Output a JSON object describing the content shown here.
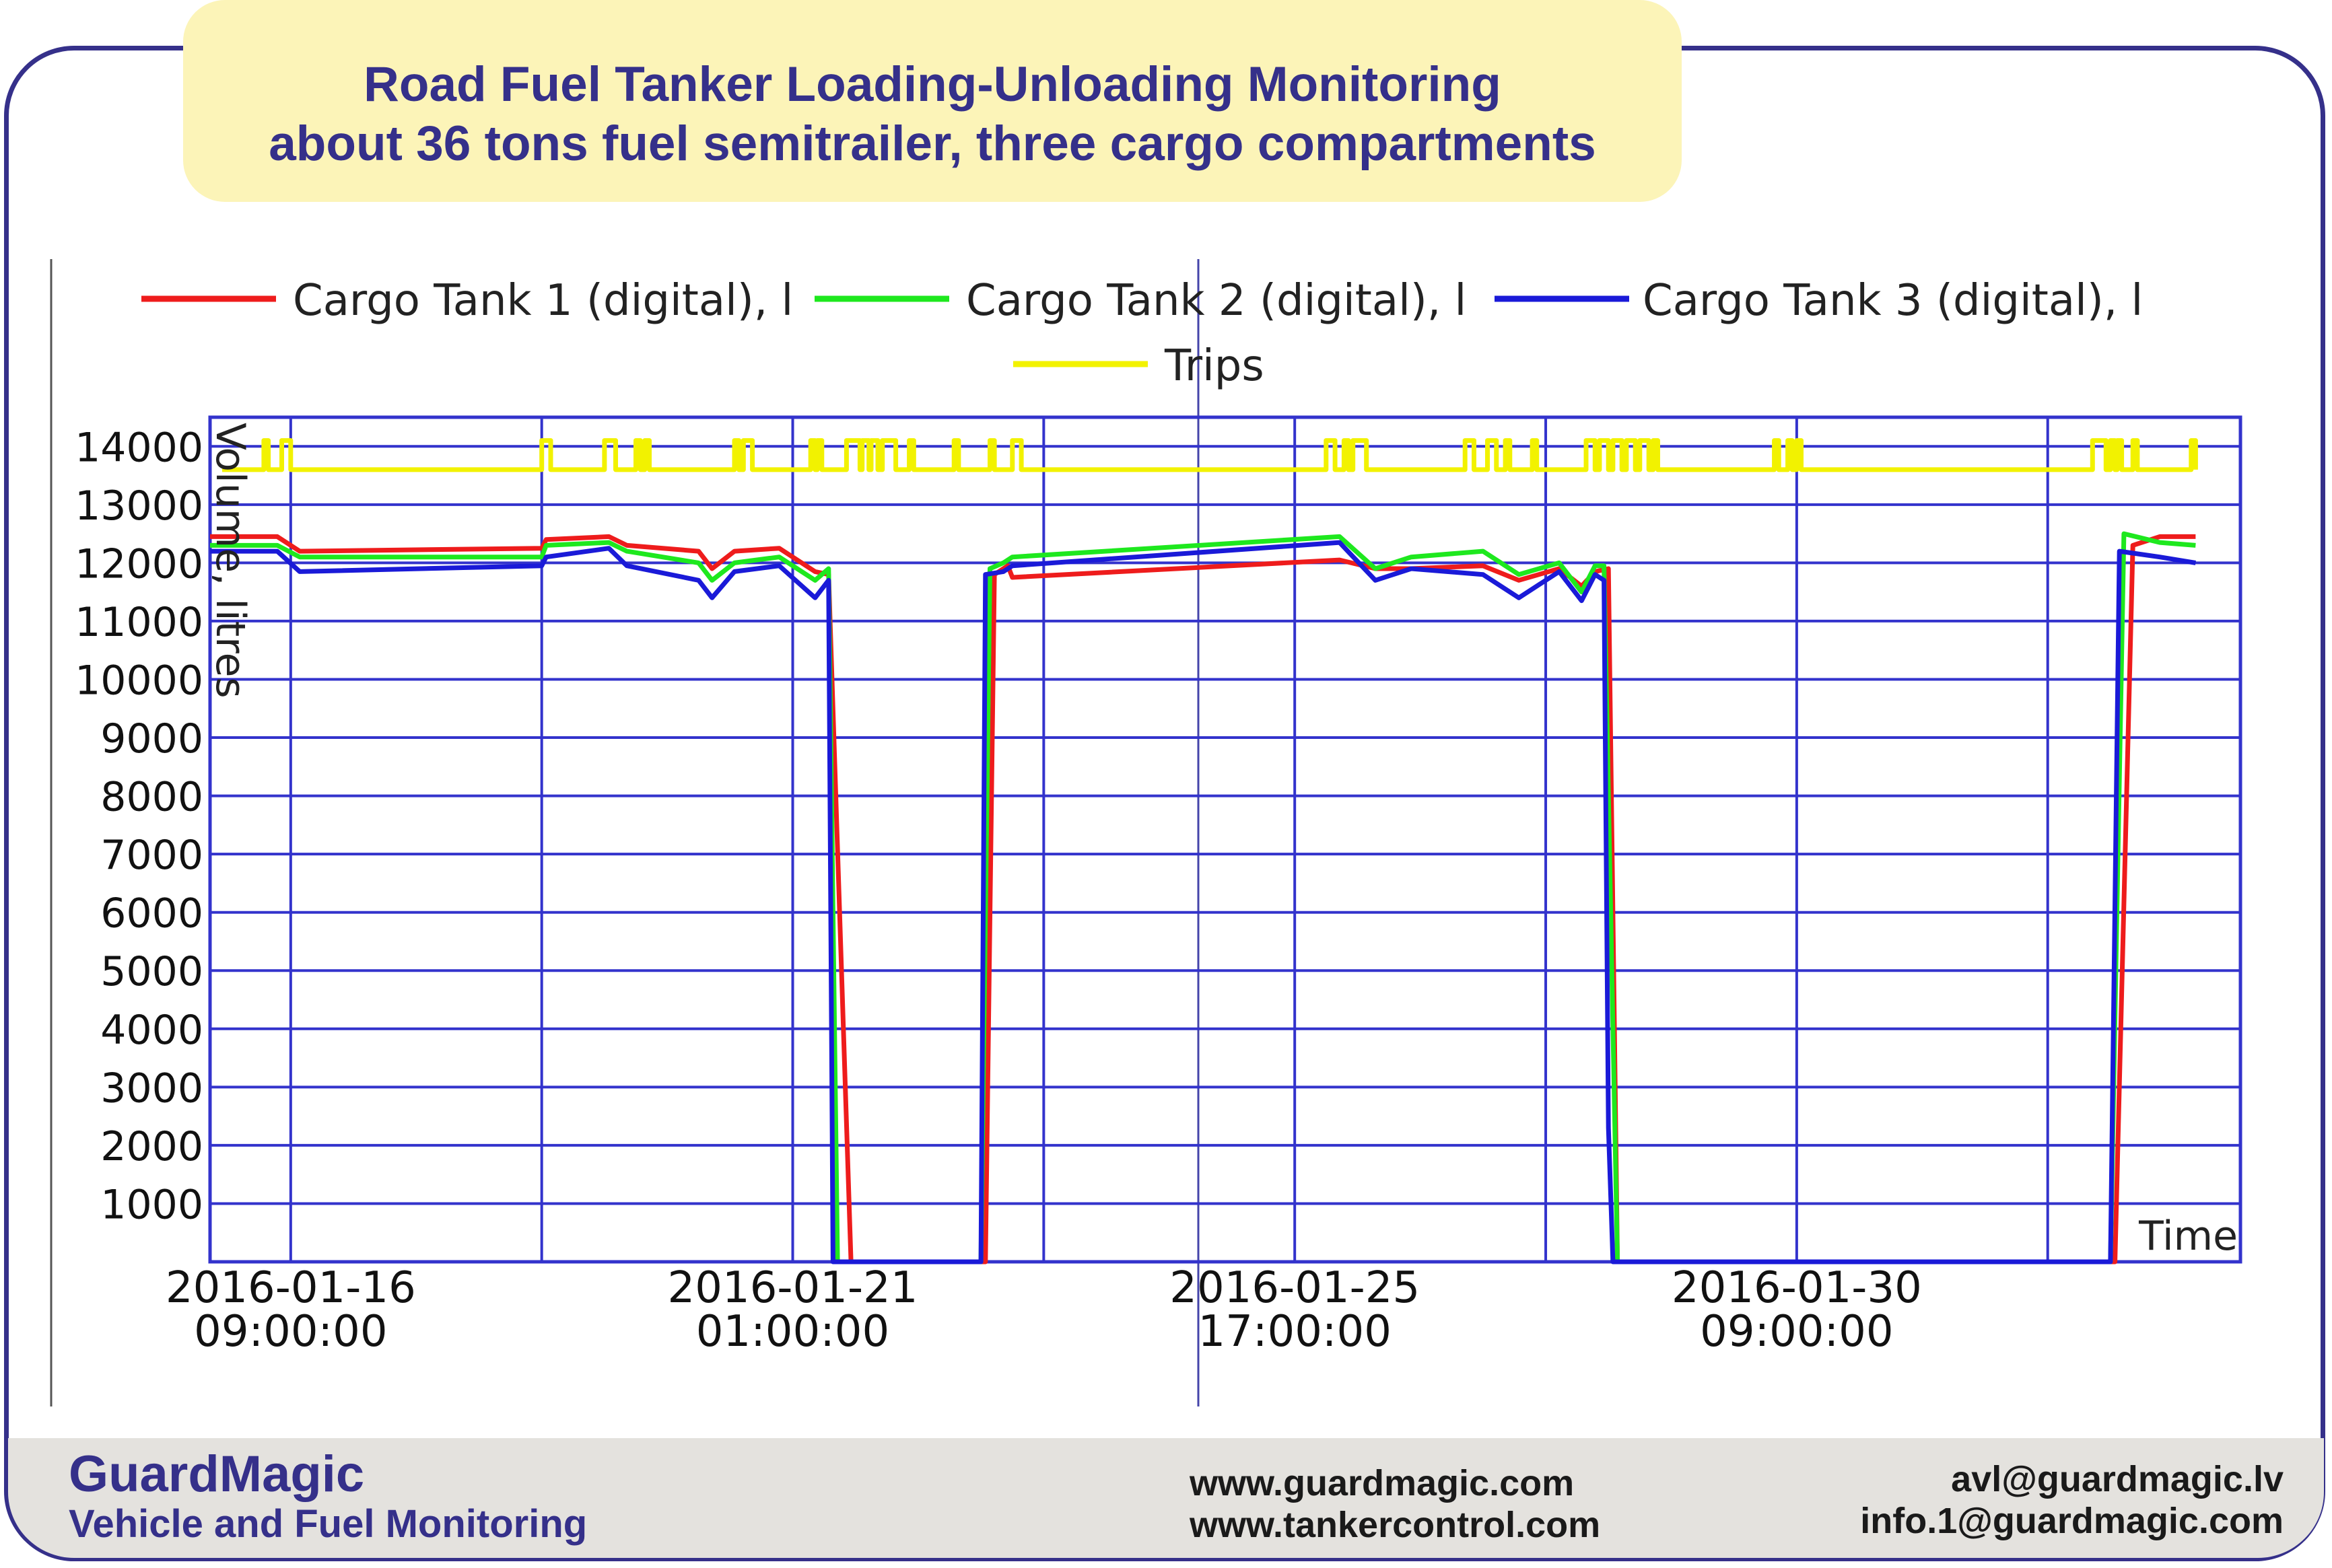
{
  "title": {
    "line1": "Road Fuel Tanker Loading-Unloading Monitoring",
    "line2": "about 36 tons fuel semitrailer, three cargo compartments"
  },
  "footer": {
    "brand": "GuardMagic",
    "tagline": "Vehicle and Fuel Monitoring",
    "websites": [
      "www.guardmagic.com",
      "www.tankercontrol.com"
    ],
    "emails": [
      "avl@guardmagic.lv",
      "info.1@guardmagic.com"
    ]
  },
  "colors": {
    "frame": "#35308a",
    "title_bg": "#fcf4b8",
    "grid": "#3333cc",
    "tank1": "#ee1c1c",
    "tank2": "#1ee81e",
    "tank3": "#1a1ad8",
    "trips": "#f2f200"
  },
  "chart_data": {
    "type": "line",
    "title": "",
    "xlabel": "Time",
    "ylabel": "Volume, litres",
    "ylim": [
      0,
      14500
    ],
    "xlim": [
      "2016-01-15 15:00",
      "2016-02-03 12:00"
    ],
    "y_ticks": [
      1000,
      2000,
      3000,
      4000,
      5000,
      6000,
      7000,
      8000,
      9000,
      10000,
      11000,
      12000,
      13000,
      14000
    ],
    "x_ticks": [
      {
        "at": "2016-01-16 09:00",
        "line1": "2016-01-16",
        "line2": "09:00:00"
      },
      {
        "at": "2016-01-21 01:00",
        "line1": "2016-01-21",
        "line2": "01:00:00"
      },
      {
        "at": "2016-01-25 17:00",
        "line1": "2016-01-25",
        "line2": "17:00:00"
      },
      {
        "at": "2016-01-30 09:00",
        "line1": "2016-01-30",
        "line2": "09:00:00"
      }
    ],
    "x_gridlines": [
      "2016-01-16 09:00",
      "2016-01-18 17:00",
      "2016-01-21 01:00",
      "2016-01-23 09:00",
      "2016-01-25 17:00",
      "2016-01-28 01:00",
      "2016-01-30 09:00",
      "2016-02-01 17:00"
    ],
    "grid": true,
    "legend": "top",
    "series": [
      {
        "name": "Cargo Tank 1 (digital), l",
        "color": "#ee1c1c",
        "points": [
          [
            "2016-01-15 15:00",
            12450
          ],
          [
            "2016-01-16 06:00",
            12450
          ],
          [
            "2016-01-16 11:00",
            12200
          ],
          [
            "2016-01-18 17:00",
            12250
          ],
          [
            "2016-01-18 18:00",
            12400
          ],
          [
            "2016-01-19 08:00",
            12450
          ],
          [
            "2016-01-19 12:00",
            12300
          ],
          [
            "2016-01-20 04:00",
            12200
          ],
          [
            "2016-01-20 07:00",
            11900
          ],
          [
            "2016-01-20 12:00",
            12200
          ],
          [
            "2016-01-20 22:00",
            12250
          ],
          [
            "2016-01-21 06:00",
            11850
          ],
          [
            "2016-01-21 09:00",
            11800
          ],
          [
            "2016-01-21 14:00",
            0
          ],
          [
            "2016-01-22 20:00",
            0
          ],
          [
            "2016-01-22 22:00",
            11800
          ],
          [
            "2016-01-23 01:00",
            11950
          ],
          [
            "2016-01-23 02:00",
            11750
          ],
          [
            "2016-01-26 03:00",
            12050
          ],
          [
            "2016-01-26 11:00",
            11900
          ],
          [
            "2016-01-26 19:00",
            11900
          ],
          [
            "2016-01-27 11:00",
            11950
          ],
          [
            "2016-01-27 19:00",
            11700
          ],
          [
            "2016-01-28 04:00",
            11900
          ],
          [
            "2016-01-28 09:00",
            11600
          ],
          [
            "2016-01-28 12:00",
            11850
          ],
          [
            "2016-01-28 15:00",
            11900
          ],
          [
            "2016-01-28 17:00",
            0
          ],
          [
            "2016-02-02 08:00",
            0
          ],
          [
            "2016-02-02 12:00",
            12300
          ],
          [
            "2016-02-02 18:00",
            12450
          ],
          [
            "2016-02-03 02:00",
            12450
          ]
        ]
      },
      {
        "name": "Cargo Tank 2 (digital), l",
        "color": "#1ee81e",
        "points": [
          [
            "2016-01-15 15:00",
            12300
          ],
          [
            "2016-01-16 06:00",
            12300
          ],
          [
            "2016-01-16 11:00",
            12100
          ],
          [
            "2016-01-18 17:00",
            12100
          ],
          [
            "2016-01-18 18:00",
            12300
          ],
          [
            "2016-01-19 08:00",
            12350
          ],
          [
            "2016-01-19 12:00",
            12200
          ],
          [
            "2016-01-20 04:00",
            12000
          ],
          [
            "2016-01-20 07:00",
            11700
          ],
          [
            "2016-01-20 12:00",
            12000
          ],
          [
            "2016-01-20 22:00",
            12100
          ],
          [
            "2016-01-21 06:00",
            11700
          ],
          [
            "2016-01-21 09:00",
            11900
          ],
          [
            "2016-01-21 11:00",
            0
          ],
          [
            "2016-01-22 19:00",
            0
          ],
          [
            "2016-01-22 21:00",
            11900
          ],
          [
            "2016-01-23 00:00",
            12000
          ],
          [
            "2016-01-23 02:00",
            12100
          ],
          [
            "2016-01-26 03:00",
            12450
          ],
          [
            "2016-01-26 11:00",
            11900
          ],
          [
            "2016-01-26 19:00",
            12100
          ],
          [
            "2016-01-27 11:00",
            12200
          ],
          [
            "2016-01-27 19:00",
            11800
          ],
          [
            "2016-01-28 04:00",
            12000
          ],
          [
            "2016-01-28 09:00",
            11500
          ],
          [
            "2016-01-28 12:00",
            11950
          ],
          [
            "2016-01-28 14:00",
            11950
          ],
          [
            "2016-01-28 17:00",
            0
          ],
          [
            "2016-02-02 07:00",
            0
          ],
          [
            "2016-02-02 10:00",
            12500
          ],
          [
            "2016-02-02 18:00",
            12350
          ],
          [
            "2016-02-03 02:00",
            12300
          ]
        ]
      },
      {
        "name": "Cargo Tank 3 (digital), l",
        "color": "#1a1ad8",
        "points": [
          [
            "2016-01-15 15:00",
            12200
          ],
          [
            "2016-01-16 06:00",
            12200
          ],
          [
            "2016-01-16 11:00",
            11850
          ],
          [
            "2016-01-18 17:00",
            11950
          ],
          [
            "2016-01-18 18:00",
            12100
          ],
          [
            "2016-01-19 08:00",
            12250
          ],
          [
            "2016-01-19 12:00",
            11950
          ],
          [
            "2016-01-20 04:00",
            11700
          ],
          [
            "2016-01-20 07:00",
            11400
          ],
          [
            "2016-01-20 12:00",
            11850
          ],
          [
            "2016-01-20 22:00",
            11950
          ],
          [
            "2016-01-21 06:00",
            11400
          ],
          [
            "2016-01-21 09:00",
            11700
          ],
          [
            "2016-01-21 10:00",
            0
          ],
          [
            "2016-01-22 19:00",
            0
          ],
          [
            "2016-01-22 20:00",
            11800
          ],
          [
            "2016-01-23 00:00",
            11850
          ],
          [
            "2016-01-23 02:00",
            11950
          ],
          [
            "2016-01-26 03:00",
            12350
          ],
          [
            "2016-01-26 11:00",
            11700
          ],
          [
            "2016-01-26 19:00",
            11900
          ],
          [
            "2016-01-27 11:00",
            11800
          ],
          [
            "2016-01-27 19:00",
            11400
          ],
          [
            "2016-01-28 04:00",
            11850
          ],
          [
            "2016-01-28 09:00",
            11350
          ],
          [
            "2016-01-28 12:00",
            11800
          ],
          [
            "2016-01-28 14:00",
            11700
          ],
          [
            "2016-01-28 15:00",
            2300
          ],
          [
            "2016-01-28 16:00",
            0
          ],
          [
            "2016-02-02 07:00",
            0
          ],
          [
            "2016-02-02 09:00",
            12200
          ],
          [
            "2016-02-02 18:00",
            12100
          ],
          [
            "2016-02-03 02:00",
            12000
          ]
        ]
      },
      {
        "name": "Trips",
        "color": "#f2f200",
        "base": 13600,
        "high": 14100,
        "active_intervals": [
          [
            "2016-01-16 03:00",
            "2016-01-16 04:00"
          ],
          [
            "2016-01-16 07:00",
            "2016-01-16 09:00"
          ],
          [
            "2016-01-18 17:00",
            "2016-01-18 19:00"
          ],
          [
            "2016-01-19 07:00",
            "2016-01-19 09:30"
          ],
          [
            "2016-01-19 14:00",
            "2016-01-19 15:00"
          ],
          [
            "2016-01-19 16:00",
            "2016-01-19 17:00"
          ],
          [
            "2016-01-20 12:00",
            "2016-01-20 13:00"
          ],
          [
            "2016-01-20 14:00",
            "2016-01-20 16:00"
          ],
          [
            "2016-01-21 05:00",
            "2016-01-21 06:00"
          ],
          [
            "2016-01-21 06:30",
            "2016-01-21 07:30"
          ],
          [
            "2016-01-21 13:00",
            "2016-01-21 16:00"
          ],
          [
            "2016-01-21 16:30",
            "2016-01-21 18:00"
          ],
          [
            "2016-01-21 18:30",
            "2016-01-21 20:00"
          ],
          [
            "2016-01-21 21:00",
            "2016-01-22 00:00"
          ],
          [
            "2016-01-22 03:00",
            "2016-01-22 04:00"
          ],
          [
            "2016-01-22 13:00",
            "2016-01-22 14:00"
          ],
          [
            "2016-01-22 21:00",
            "2016-01-22 22:00"
          ],
          [
            "2016-01-23 02:00",
            "2016-01-23 04:00"
          ],
          [
            "2016-01-26 00:00",
            "2016-01-26 02:00"
          ],
          [
            "2016-01-26 04:00",
            "2016-01-26 05:00"
          ],
          [
            "2016-01-26 06:00",
            "2016-01-26 09:00"
          ],
          [
            "2016-01-27 07:00",
            "2016-01-27 09:00"
          ],
          [
            "2016-01-27 12:00",
            "2016-01-27 14:00"
          ],
          [
            "2016-01-27 16:00",
            "2016-01-27 17:00"
          ],
          [
            "2016-01-27 22:00",
            "2016-01-27 23:00"
          ],
          [
            "2016-01-28 10:00",
            "2016-01-28 12:00"
          ],
          [
            "2016-01-28 13:00",
            "2016-01-28 15:00"
          ],
          [
            "2016-01-28 16:00",
            "2016-01-28 18:00"
          ],
          [
            "2016-01-28 19:00",
            "2016-01-28 21:00"
          ],
          [
            "2016-01-28 22:00",
            "2016-01-29 00:00"
          ],
          [
            "2016-01-29 01:00",
            "2016-01-29 02:00"
          ],
          [
            "2016-01-30 04:00",
            "2016-01-30 05:00"
          ],
          [
            "2016-01-30 07:00",
            "2016-01-30 08:00"
          ],
          [
            "2016-01-30 09:00",
            "2016-01-30 10:00"
          ],
          [
            "2016-02-02 03:00",
            "2016-02-02 06:00"
          ],
          [
            "2016-02-02 07:00",
            "2016-02-02 08:00"
          ],
          [
            "2016-02-02 08:30",
            "2016-02-02 09:30"
          ],
          [
            "2016-02-02 12:00",
            "2016-02-02 13:00"
          ],
          [
            "2016-02-03 01:00",
            "2016-02-03 02:00"
          ]
        ]
      }
    ]
  }
}
